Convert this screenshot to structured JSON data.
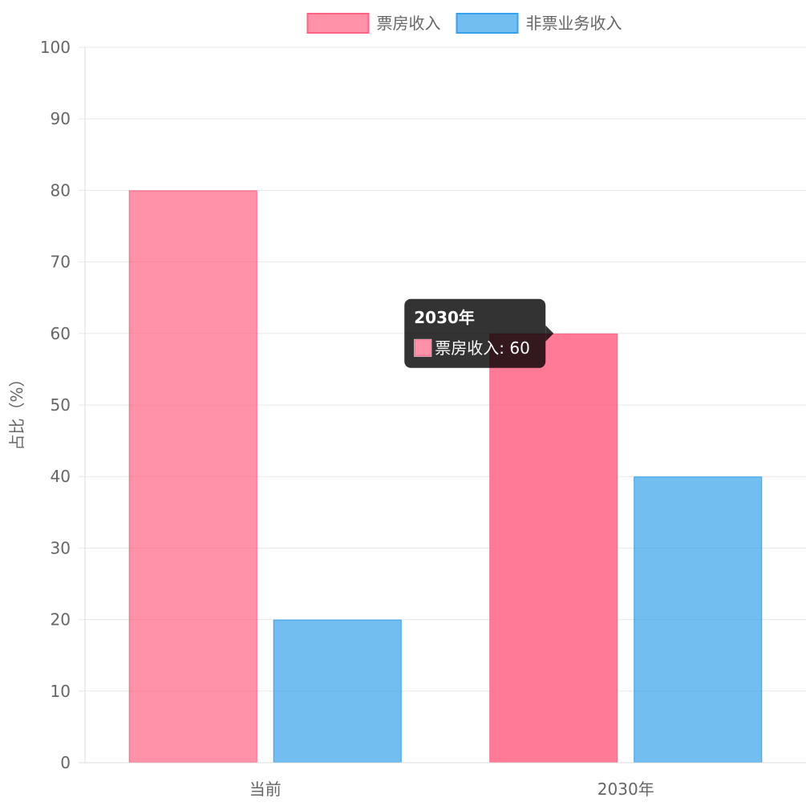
{
  "chart_data": {
    "type": "bar",
    "categories": [
      "当前",
      "2030年"
    ],
    "series": [
      {
        "name": "票房收入",
        "values": [
          80,
          60
        ],
        "color": "#ff6384"
      },
      {
        "name": "非票业务收入",
        "values": [
          20,
          40
        ],
        "color": "#36a2eb"
      }
    ],
    "ylabel": "占比（%）",
    "ylim": [
      0,
      100
    ],
    "yticks": [
      0,
      10,
      20,
      30,
      40,
      50,
      60,
      70,
      80,
      90,
      100
    ],
    "grid": true,
    "legend_position": "top",
    "tooltip": {
      "title": "2030年",
      "series": "票房收入",
      "label": "票房收入: 60"
    }
  }
}
